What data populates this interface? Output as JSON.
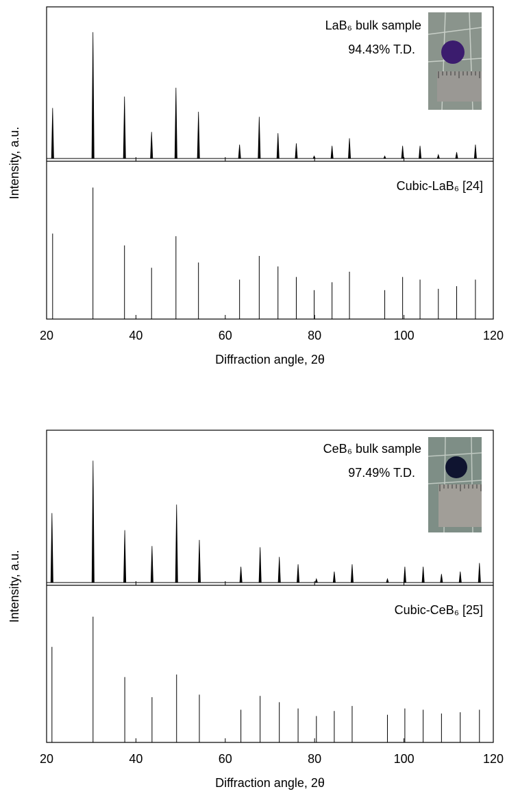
{
  "chart_data": [
    {
      "type": "xrd",
      "xlabel": "Diffraction angle, 2θ",
      "ylabel": "Intensity, a.u.",
      "xlim": [
        20,
        120
      ],
      "xticks": [
        20,
        40,
        60,
        80,
        100,
        120
      ],
      "ylim": [
        0,
        120
      ],
      "annotation": "94.43% T.D.",
      "series": [
        {
          "name": "LaB₆ bulk sample",
          "color": "#000000",
          "x": [
            21.35,
            30.38,
            37.44,
            43.5,
            48.96,
            54.0,
            63.2,
            67.6,
            71.8,
            75.9,
            79.9,
            83.9,
            87.8,
            95.7,
            99.7,
            103.6,
            107.7,
            111.8,
            116.0
          ],
          "values": [
            40,
            100,
            49,
            21,
            56,
            37,
            11,
            33,
            20,
            12,
            2,
            10,
            16,
            2,
            10,
            10,
            3,
            5,
            11
          ]
        },
        {
          "name": "Cubic-LaB₆ [24]",
          "color": "#000000",
          "x": [
            21.35,
            30.38,
            37.44,
            43.5,
            48.96,
            54.0,
            63.2,
            67.6,
            71.8,
            75.9,
            79.9,
            83.9,
            87.8,
            95.7,
            99.7,
            103.6,
            107.7,
            111.8,
            116.0
          ],
          "values": [
            65,
            100,
            56,
            39,
            63,
            43,
            30,
            48,
            40,
            32,
            22,
            28,
            36,
            22,
            32,
            30,
            23,
            25,
            30
          ]
        }
      ]
    },
    {
      "type": "xrd",
      "xlabel": "Diffraction angle, 2θ",
      "ylabel": "Intensity, a.u.",
      "xlim": [
        20,
        120
      ],
      "xticks": [
        20,
        40,
        60,
        80,
        100,
        120
      ],
      "ylim": [
        0,
        125
      ],
      "annotation": "97.49% T.D.",
      "series": [
        {
          "name": "CeB₆ bulk sample",
          "color": "#000000",
          "x": [
            21.2,
            30.4,
            37.5,
            43.6,
            49.1,
            54.2,
            63.5,
            67.8,
            72.1,
            76.3,
            80.4,
            84.4,
            88.4,
            96.3,
            100.2,
            104.3,
            108.4,
            112.6,
            116.9
          ],
          "values": [
            57,
            100,
            43,
            30,
            64,
            35,
            13,
            29,
            21,
            15,
            3,
            9,
            15,
            3,
            13,
            13,
            7,
            9,
            16
          ]
        },
        {
          "name": "Cubic-CeB₆ [25]",
          "color": "#000000",
          "x": [
            21.2,
            30.4,
            37.5,
            43.6,
            49.1,
            54.2,
            63.5,
            67.8,
            72.1,
            76.3,
            80.4,
            84.4,
            88.4,
            96.3,
            100.2,
            104.3,
            108.4,
            112.6,
            116.9
          ],
          "values": [
            76,
            100,
            52,
            36,
            54,
            38,
            26,
            37,
            32,
            27,
            21,
            25,
            29,
            22,
            27,
            26,
            23,
            24,
            26
          ]
        }
      ]
    }
  ]
}
